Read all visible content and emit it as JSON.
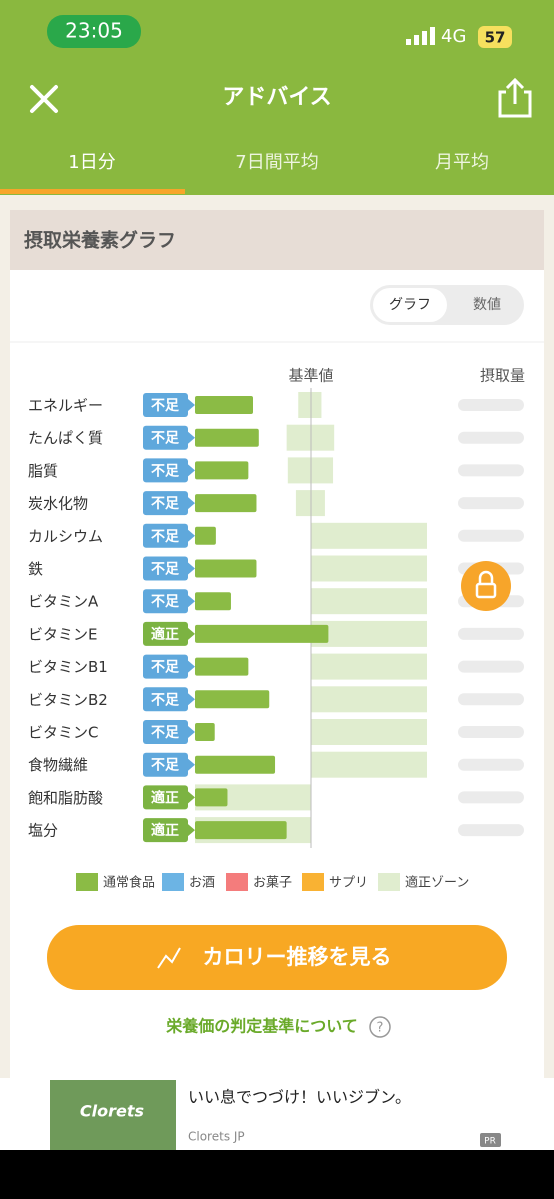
{
  "status_bar": {
    "time": "23:05",
    "network": "4G",
    "battery": "57"
  },
  "header": {
    "title": "アドバイス"
  },
  "tabs": [
    "1日分",
    "7日間平均",
    "月平均"
  ],
  "section_title": "摂取栄養素グラフ",
  "toggle": [
    "グラフ",
    "数値"
  ],
  "chart_data": {
    "type": "bar",
    "orientation": "horizontal",
    "column_labels": [
      "基準値",
      "摂取量"
    ],
    "categories": [
      "エネルギー",
      "たんぱく質",
      "脂質",
      "炭水化物",
      "カルシウム",
      "鉄",
      "ビタミンA",
      "ビタミンE",
      "ビタミンB1",
      "ビタミンB2",
      "ビタミンC",
      "食物繊維",
      "飽和脂肪酸",
      "塩分"
    ],
    "status_labels": [
      "不足",
      "不足",
      "不足",
      "不足",
      "不足",
      "不足",
      "不足",
      "適正",
      "不足",
      "不足",
      "不足",
      "不足",
      "適正",
      "適正"
    ],
    "status_colors": [
      "#5fa8dc",
      "#5fa8dc",
      "#5fa8dc",
      "#5fa8dc",
      "#5fa8dc",
      "#5fa8dc",
      "#5fa8dc",
      "#7cb342",
      "#5fa8dc",
      "#5fa8dc",
      "#5fa8dc",
      "#5fa8dc",
      "#7cb342",
      "#7cb342"
    ],
    "values": [
      50,
      55,
      46,
      53,
      18,
      53,
      31,
      115,
      46,
      64,
      17,
      69,
      28,
      79
    ],
    "color": "#8bbb45",
    "zone_low": [
      89,
      79,
      80,
      87,
      100,
      100,
      100,
      100,
      100,
      100,
      100,
      100,
      0,
      0
    ],
    "zone_high": [
      109,
      120,
      119,
      112,
      200,
      200,
      200,
      200,
      200,
      200,
      200,
      200,
      100,
      100
    ],
    "zone_color": "#e0edcf",
    "reference": 100,
    "xlim": [
      0,
      200
    ],
    "legend": [
      {
        "name": "通常食品",
        "color": "#8bbb45"
      },
      {
        "name": "お酒",
        "color": "#6cb4e4"
      },
      {
        "name": "お菓子",
        "color": "#f47c7c"
      },
      {
        "name": "サプリ",
        "color": "#f9b233"
      },
      {
        "name": "適正ゾーン",
        "color": "#e0edcf"
      }
    ]
  },
  "button": "カロリー推移を見る",
  "link": "栄養価の判定基準について",
  "ad": {
    "headline": "いい息でつづけ！いいジブン。",
    "advertiser": "Clorets JP",
    "badge": "PR",
    "image_text": "Clorets"
  }
}
